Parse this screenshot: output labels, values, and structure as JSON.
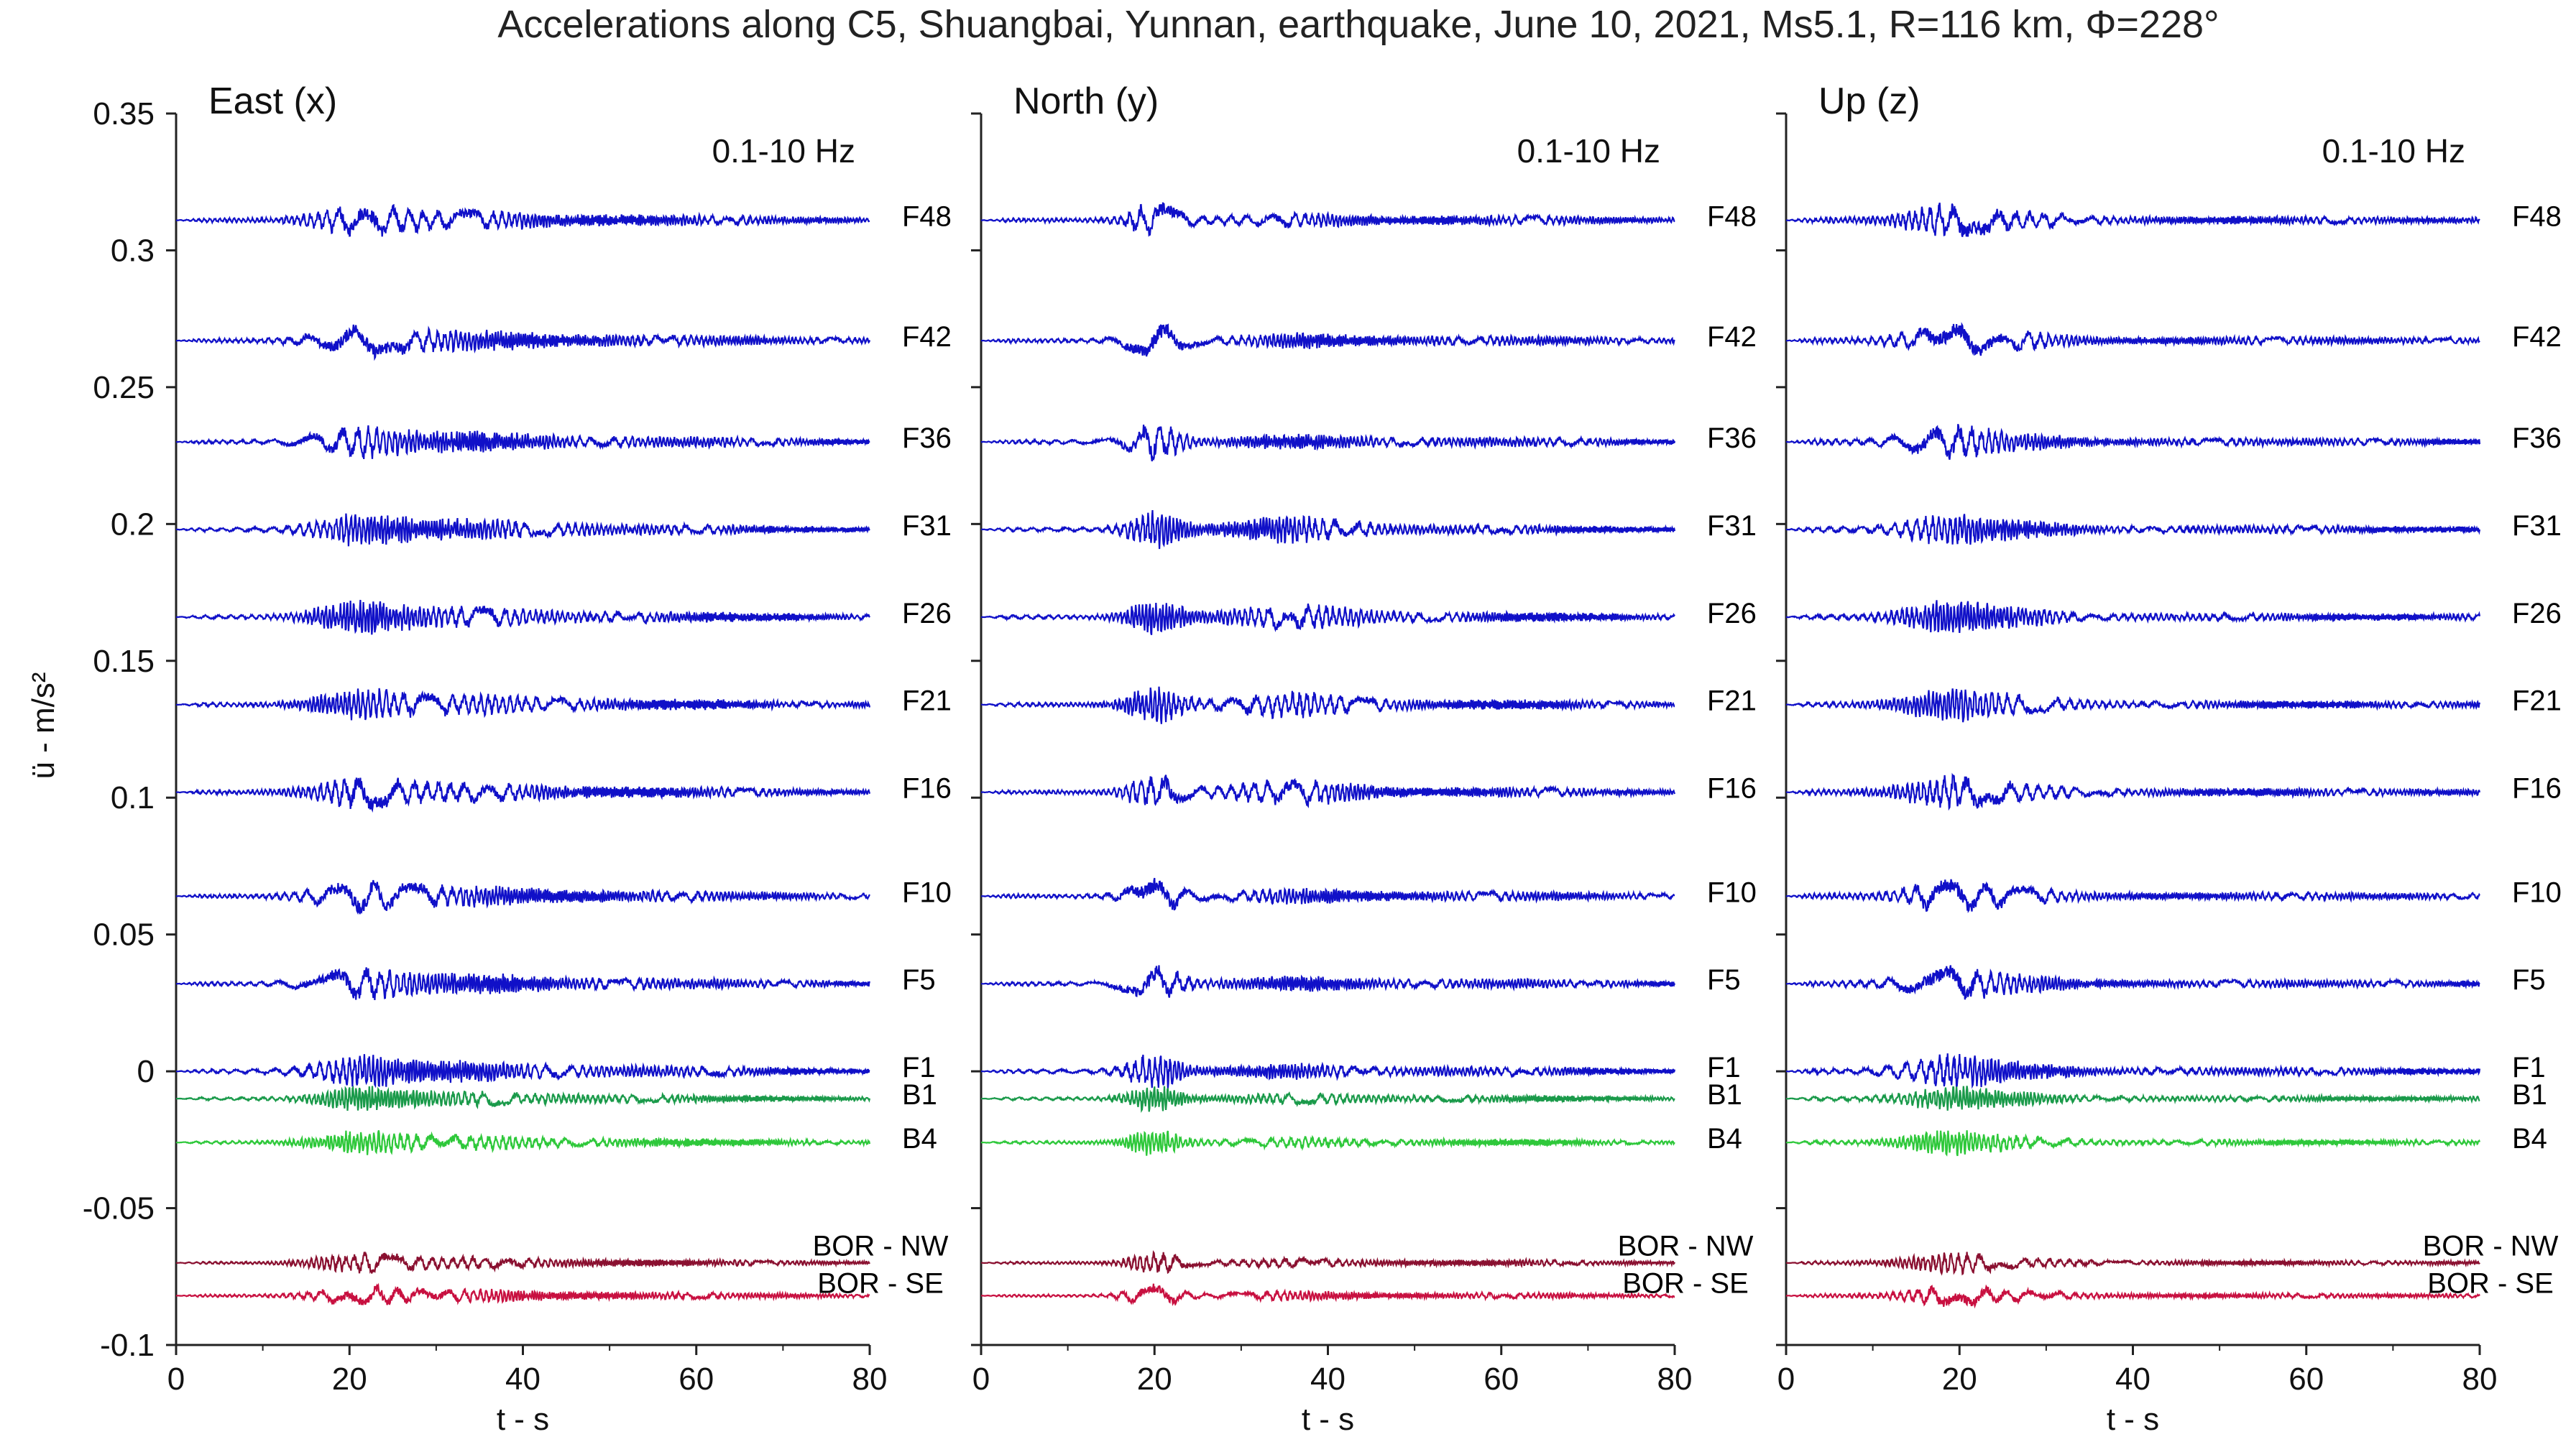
{
  "chart_data": {
    "type": "line",
    "title": "Accelerations along C5, Shuangbai, Yunnan, earthquake, June 10, 2021, Ms5.1, R=116 km, Φ=228°",
    "ylabel": "ü - m/s²",
    "xlabel": "t - s",
    "xlim": [
      0,
      80
    ],
    "ylim": [
      -0.1,
      0.35
    ],
    "x_ticks": [
      "0",
      "20",
      "40",
      "60",
      "80"
    ],
    "y_ticks": [
      "0.35",
      "0.3",
      "0.25",
      "0.2",
      "0.15",
      "0.1",
      "0.05",
      "0",
      "-0.05",
      "-0.1"
    ],
    "y_tick_values": [
      0.35,
      0.3,
      0.25,
      0.2,
      0.15,
      0.1,
      0.05,
      0,
      -0.05,
      -0.1
    ],
    "grid": false,
    "panels": [
      {
        "title": "East (x)",
        "band": "0.1-10 Hz"
      },
      {
        "title": "North (y)",
        "band": "0.1-10 Hz"
      },
      {
        "title": "Up (z)",
        "band": "0.1-10 Hz"
      }
    ],
    "traces": [
      {
        "label": "F48",
        "offset": 0.311,
        "color": "#1010c8",
        "group": "F"
      },
      {
        "label": "F42",
        "offset": 0.267,
        "color": "#1010c8",
        "group": "F"
      },
      {
        "label": "F36",
        "offset": 0.23,
        "color": "#1010c8",
        "group": "F"
      },
      {
        "label": "F31",
        "offset": 0.198,
        "color": "#1010c8",
        "group": "F"
      },
      {
        "label": "F26",
        "offset": 0.166,
        "color": "#1010c8",
        "group": "F"
      },
      {
        "label": "F21",
        "offset": 0.134,
        "color": "#1010c8",
        "group": "F"
      },
      {
        "label": "F16",
        "offset": 0.102,
        "color": "#1010c8",
        "group": "F"
      },
      {
        "label": "F10",
        "offset": 0.064,
        "color": "#1010c8",
        "group": "F"
      },
      {
        "label": "F5",
        "offset": 0.032,
        "color": "#1010c8",
        "group": "F"
      },
      {
        "label": "F1",
        "offset": 0.0,
        "color": "#1010c8",
        "group": "F"
      },
      {
        "label": "B1",
        "offset": -0.01,
        "color": "#1a9a4a",
        "group": "B"
      },
      {
        "label": "B4",
        "offset": -0.026,
        "color": "#2ec83a",
        "group": "B"
      },
      {
        "label": "BOR - NW",
        "offset": -0.07,
        "color": "#8a1030",
        "group": "BOR"
      },
      {
        "label": "BOR - SE",
        "offset": -0.082,
        "color": "#c81040",
        "group": "BOR"
      }
    ]
  }
}
